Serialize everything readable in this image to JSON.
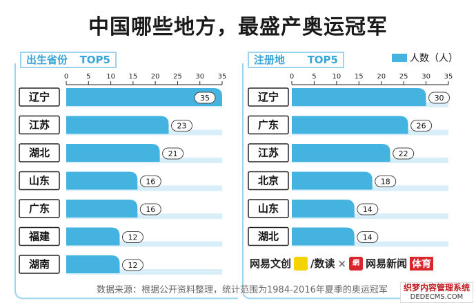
{
  "title": "中国哪些地方，最盛产奥运冠军",
  "legend_label": "人数（人）",
  "chart_data": [
    {
      "type": "bar",
      "title": "出生省份",
      "badge": "TOP5",
      "categories": [
        "辽宁",
        "江苏",
        "湖北",
        "山东",
        "广东",
        "福建",
        "湖南"
      ],
      "values": [
        35,
        23,
        21,
        16,
        16,
        12,
        12
      ],
      "xlim": [
        0,
        35
      ],
      "ticks": [
        0,
        5,
        10,
        15,
        20,
        25,
        30,
        35
      ]
    },
    {
      "type": "bar",
      "title": "注册地",
      "badge": "TOP5",
      "categories": [
        "辽宁",
        "广东",
        "江苏",
        "北京",
        "山东",
        "湖北"
      ],
      "values": [
        30,
        26,
        22,
        18,
        14,
        14
      ],
      "xlim": [
        0,
        35
      ],
      "ticks": [
        0,
        5,
        10,
        15,
        20,
        25,
        30,
        35
      ]
    }
  ],
  "footer": {
    "source": "数据来源：根据公开资料整理，统计范围为1984-2016年夏季的奥运冠军",
    "logo_a": "网易文创",
    "logo_b": "/数读",
    "logo_c": "网易新闻",
    "logo_d": "体育"
  },
  "watermark": {
    "line1": "织梦内容管理系统",
    "line2": "DEDECMS.COM"
  },
  "colors": {
    "bar": "#45b3e0",
    "bar_shadow": "#d8eef8",
    "frame": "#9bd3ee",
    "label_border": "#222222"
  }
}
